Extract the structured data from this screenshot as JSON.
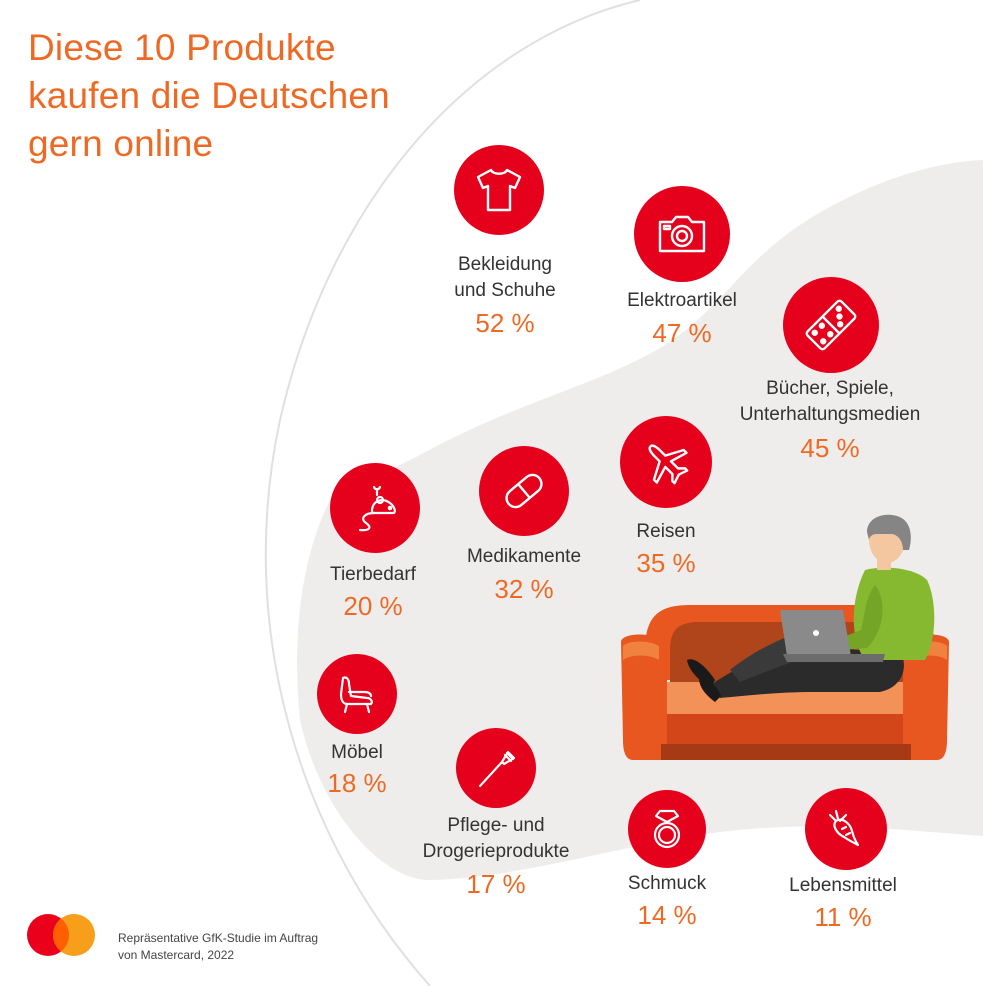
{
  "title": {
    "line1": "Diese 10 Produkte",
    "line2": "kaufen die Deutschen",
    "line3": "gern online"
  },
  "colors": {
    "accent": "#ee6a24",
    "icon_circle": "#e5001c",
    "background_blob": "#efedeb",
    "text": "#333333"
  },
  "categories": [
    {
      "id": "bekleidung",
      "icon": "tshirt-icon",
      "label_lines": [
        "Bekleidung",
        "und Schuhe"
      ],
      "value": "52 %"
    },
    {
      "id": "elektro",
      "icon": "camera-icon",
      "label_lines": [
        "Elektroartikel"
      ],
      "value": "47 %"
    },
    {
      "id": "buecher",
      "icon": "domino-icon",
      "label_lines": [
        "Bücher, Spiele,",
        "Unterhaltungsmedien"
      ],
      "value": "45 %"
    },
    {
      "id": "reisen",
      "icon": "airplane-icon",
      "label_lines": [
        "Reisen"
      ],
      "value": "35 %"
    },
    {
      "id": "medikamente",
      "icon": "pill-icon",
      "label_lines": [
        "Medikamente"
      ],
      "value": "32 %"
    },
    {
      "id": "tierbedarf",
      "icon": "toy-mouse-icon",
      "label_lines": [
        "Tierbedarf"
      ],
      "value": "20 %"
    },
    {
      "id": "moebel",
      "icon": "armchair-icon",
      "label_lines": [
        "Möbel"
      ],
      "value": "18 %"
    },
    {
      "id": "pflege",
      "icon": "toothbrush-icon",
      "label_lines": [
        "Pflege- und",
        "Drogerieprodukte"
      ],
      "value": "17 %"
    },
    {
      "id": "schmuck",
      "icon": "ring-icon",
      "label_lines": [
        "Schmuck"
      ],
      "value": "14 %"
    },
    {
      "id": "lebensmittel",
      "icon": "carrot-icon",
      "label_lines": [
        "Lebensmittel"
      ],
      "value": "11 %"
    }
  ],
  "footer": {
    "line1": "Repräsentative GfK-Studie im Auftrag",
    "line2": "von Mastercard, 2022"
  },
  "logo": {
    "icon": "mastercard-logo",
    "left_color": "#eb001b",
    "right_color": "#f79e1b"
  },
  "illustration": {
    "icon": "person-on-sofa-with-laptop-icon"
  }
}
